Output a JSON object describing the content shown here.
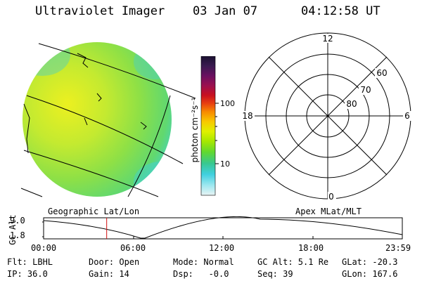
{
  "header": {
    "title": "Ultraviolet Imager",
    "date": "03 Jan 07",
    "time": "04:12:58 UT"
  },
  "colorbar": {
    "unit_label": "photon cm⁻²s⁻¹",
    "ticks": [
      {
        "label": "100",
        "value": 100
      },
      {
        "label": "10",
        "value": 10
      }
    ],
    "colors": [
      "#1a1030",
      "#3a1a50",
      "#6a1060",
      "#9a1050",
      "#c81020",
      "#e84010",
      "#f88a00",
      "#f8c800",
      "#e0f000",
      "#a8e800",
      "#60d830",
      "#38c890",
      "#40d0e0",
      "#a0e8f0",
      "#e8f4f4"
    ]
  },
  "polar_plot": {
    "mlt_labels": {
      "top": "12",
      "left": "18",
      "right": "6",
      "bottom": "0"
    },
    "lat_labels": [
      "60",
      "70",
      "80"
    ]
  },
  "timeline": {
    "left_label": "Geographic Lat/Lon",
    "right_label": "Apex MLat/MLT",
    "y_axis_title": "GC Alt",
    "y_ticks": [
      "9.0",
      "1.8"
    ],
    "x_ticks": [
      "00:00",
      "06:00",
      "12:00",
      "18:00",
      "23:59"
    ],
    "current_time_hours": 4.22,
    "marker_color": "#d01010"
  },
  "footer": {
    "flt": "Flt: LBHL",
    "ip": "IP: 36.0",
    "door": "Door: Open",
    "gain": "Gain: 14",
    "mode": "Mode: Normal",
    "dsp": "Dsp:   -0.0",
    "gcalt": "GC Alt: 5.1 Re",
    "seq": "Seq: 39",
    "glat": "GLat: -20.3",
    "glon": "GLon: 167.6"
  }
}
